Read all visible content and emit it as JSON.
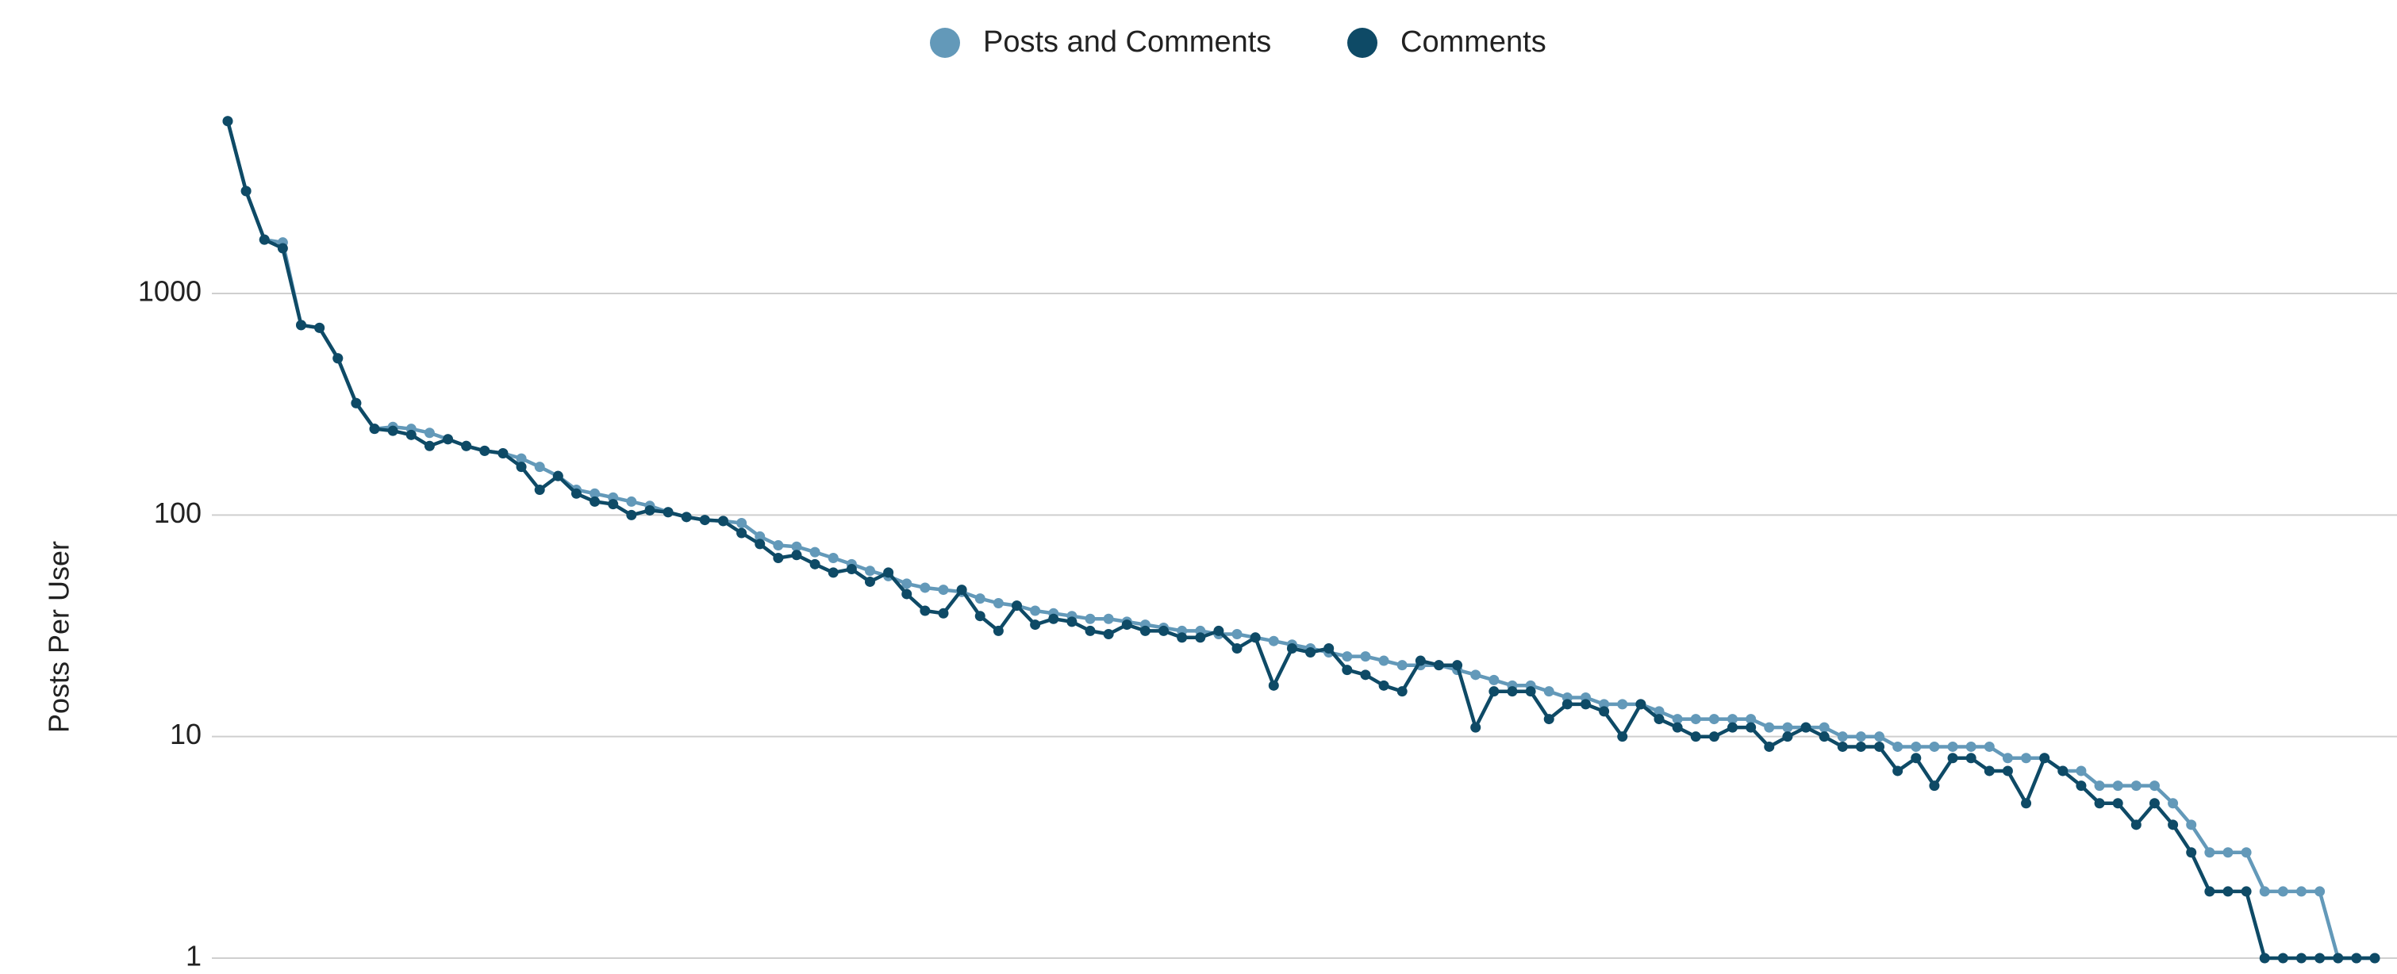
{
  "chart_data": {
    "type": "line",
    "y_label": "Posts Per User",
    "log_y": true,
    "grid": true,
    "legend": "top",
    "ylim": [
      1,
      7000
    ],
    "yticks": [
      1,
      10,
      100,
      1000
    ],
    "series": [
      {
        "name": "Posts and Comments",
        "color": "#6399b9",
        "values": [
          6000,
          2900,
          1750,
          1700,
          720,
          700,
          510,
          320,
          245,
          250,
          245,
          235,
          220,
          205,
          195,
          190,
          180,
          165,
          150,
          130,
          125,
          120,
          115,
          110,
          103,
          98,
          95,
          94,
          92,
          80,
          73,
          72,
          68,
          64,
          60,
          56,
          53,
          49,
          47,
          46,
          45,
          42,
          40,
          39,
          37,
          36,
          35,
          34,
          34,
          33,
          32,
          31,
          30,
          30,
          29,
          29,
          28,
          27,
          26,
          25,
          24,
          23,
          23,
          22,
          21,
          21,
          21,
          20,
          19,
          18,
          17,
          17,
          16,
          15,
          15,
          14,
          14,
          14,
          13,
          12,
          12,
          12,
          12,
          12,
          11,
          11,
          11,
          11,
          10,
          10,
          10,
          9,
          9,
          9,
          9,
          9,
          9,
          8,
          8,
          8,
          7,
          7,
          6,
          6,
          6,
          6,
          5,
          4,
          3,
          3,
          3,
          2,
          2,
          2,
          2,
          1,
          1,
          1
        ]
      },
      {
        "name": "Comments",
        "color": "#0e4a66",
        "values": [
          6000,
          2900,
          1750,
          1600,
          720,
          700,
          510,
          320,
          245,
          240,
          230,
          205,
          220,
          205,
          195,
          190,
          165,
          130,
          150,
          125,
          115,
          112,
          100,
          105,
          103,
          98,
          95,
          94,
          83,
          74,
          64,
          66,
          60,
          55,
          57,
          50,
          55,
          44,
          37,
          36,
          46,
          35,
          30,
          39,
          32,
          34,
          33,
          30,
          29,
          32,
          30,
          30,
          28,
          28,
          30,
          25,
          28,
          17,
          25,
          24,
          25,
          20,
          19,
          17,
          16,
          22,
          21,
          21,
          11,
          16,
          16,
          16,
          12,
          14,
          14,
          13,
          10,
          14,
          12,
          11,
          10,
          10,
          11,
          11,
          9,
          10,
          11,
          10,
          9,
          9,
          9,
          7,
          8,
          6,
          8,
          8,
          7,
          7,
          5,
          8,
          7,
          6,
          5,
          5,
          4,
          5,
          4,
          3,
          2,
          2,
          2,
          1,
          1,
          1,
          1,
          1,
          1,
          1
        ]
      }
    ]
  }
}
